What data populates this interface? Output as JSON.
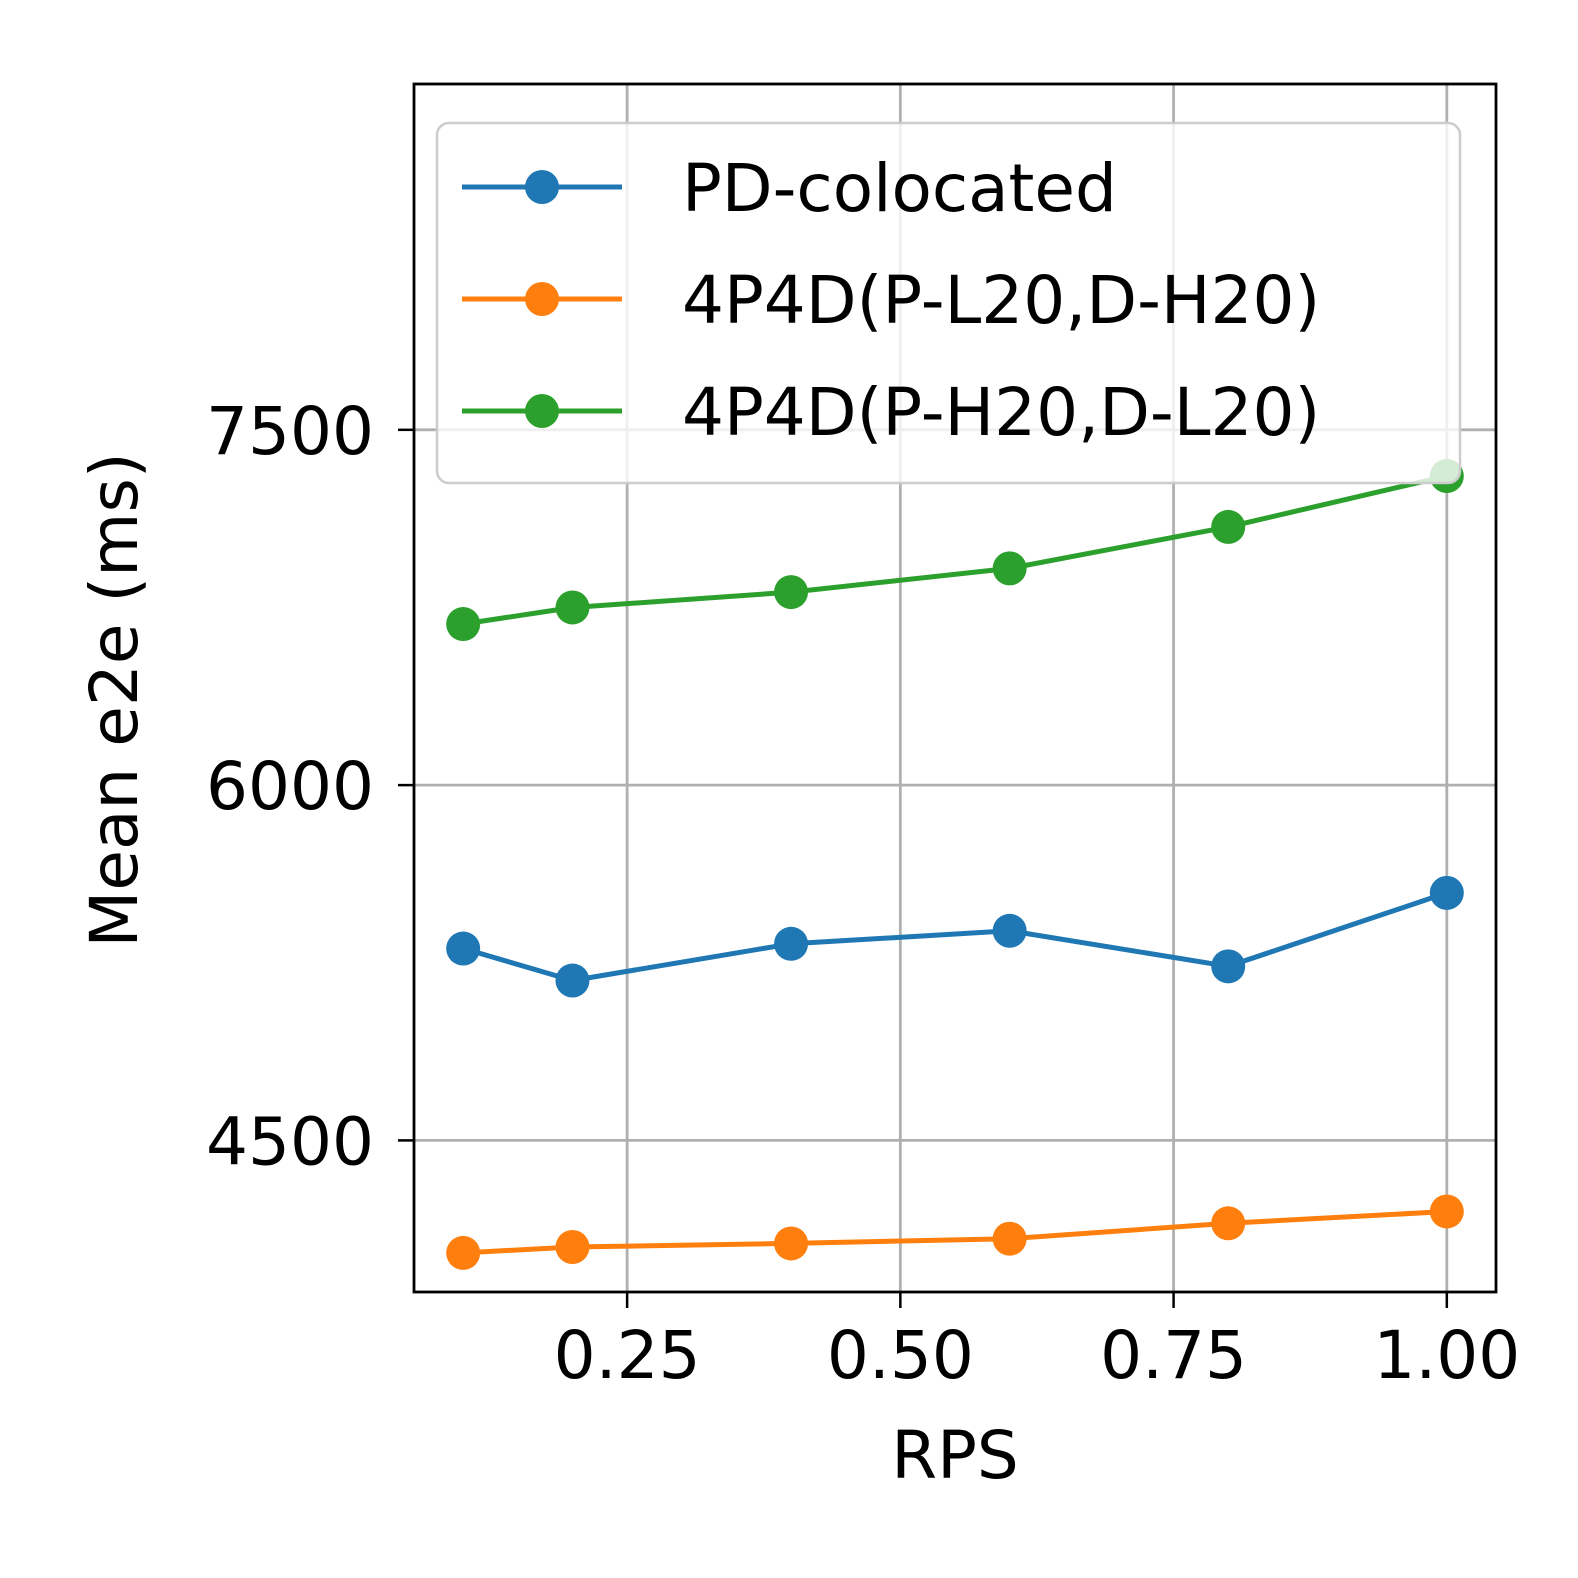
{
  "chart_data": {
    "type": "line",
    "xlabel": "RPS",
    "ylabel": "Mean e2e (ms)",
    "xlim": [
      0.055,
      1.045
    ],
    "ylim": [
      3860,
      8960
    ],
    "xticks": [
      0.25,
      0.5,
      0.75,
      1.0
    ],
    "xtick_labels": [
      "0.25",
      "0.50",
      "0.75",
      "1.00"
    ],
    "yticks": [
      4500,
      6000,
      7500
    ],
    "ytick_labels": [
      "4500",
      "6000",
      "7500"
    ],
    "grid": true,
    "legend_position": "top-right",
    "series": [
      {
        "name": "PD-colocated",
        "color": "#1f77b4",
        "x": [
          0.1,
          0.2,
          0.4,
          0.6,
          0.8,
          1.0
        ],
        "y": [
          5310,
          5175,
          5330,
          5385,
          5235,
          5545
        ]
      },
      {
        "name": "4P4D(P-L20,D-H20)",
        "color": "#ff7f0e",
        "x": [
          0.1,
          0.2,
          0.4,
          0.6,
          0.8,
          1.0
        ],
        "y": [
          4025,
          4050,
          4065,
          4085,
          4150,
          4200
        ]
      },
      {
        "name": "4P4D(P-H20,D-L20)",
        "color": "#2ca02c",
        "x": [
          0.1,
          0.2,
          0.4,
          0.6,
          0.8,
          1.0
        ],
        "y": [
          6680,
          6750,
          6815,
          6915,
          7090,
          7305
        ]
      }
    ]
  }
}
